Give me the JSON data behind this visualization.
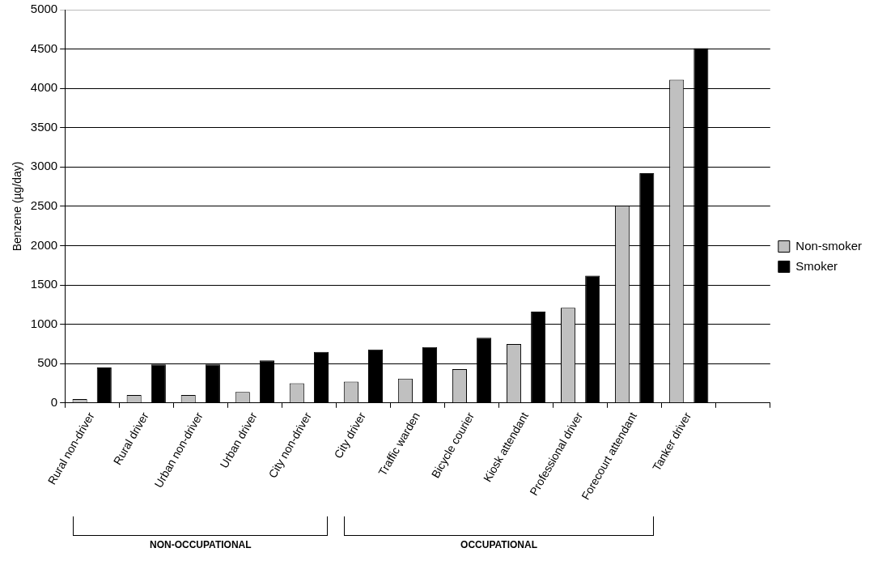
{
  "chart_data": {
    "type": "bar",
    "ylabel": "Benzene (µg/day)",
    "categories": [
      "Rural non-driver",
      "Rural driver",
      "Urban non-driver",
      "Urban driver",
      "City non-driver",
      "City driver",
      "Traffic warden",
      "Bicycle courier",
      "Kiosk attendant",
      "Professional driver",
      "Forecourt attendant",
      "Tanker driver",
      null
    ],
    "series": [
      {
        "name": "Non-smoker",
        "color": "#c0c0c0",
        "values": [
          50,
          100,
          100,
          140,
          250,
          270,
          310,
          430,
          750,
          1210,
          2510,
          4110,
          null
        ]
      },
      {
        "name": "Smoker",
        "color": "#000000",
        "values": [
          450,
          490,
          490,
          540,
          650,
          680,
          710,
          830,
          1160,
          1620,
          2920,
          4510,
          null
        ]
      }
    ],
    "ylim": [
      0,
      5000
    ],
    "yticks": [
      0,
      500,
      1000,
      1500,
      2000,
      2500,
      3000,
      3500,
      4000,
      4500,
      5000
    ],
    "grid": "y",
    "legend": "right",
    "annotations": [
      "NON-OCCUPATIONAL",
      "OCCUPATIONAL"
    ]
  }
}
